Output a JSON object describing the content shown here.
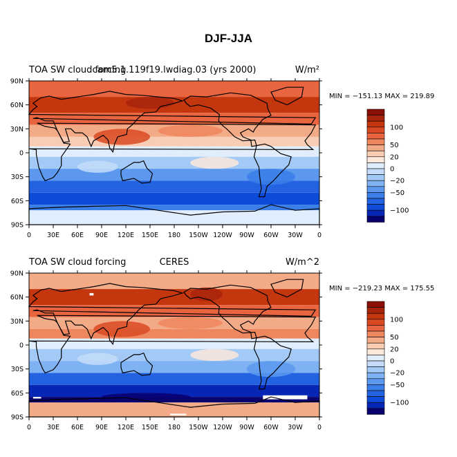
{
  "page": {
    "title": "DJF-JJA"
  },
  "colors": {
    "levels": [
      "#08006f",
      "#0626b6",
      "#0e4bd8",
      "#2363e2",
      "#3a7ee8",
      "#5b98ee",
      "#7fb2f3",
      "#a3c9f6",
      "#c4dcf9",
      "#dfedfc",
      "#fde8dc",
      "#f8cdb3",
      "#f3aa86",
      "#ee865e",
      "#e9653f",
      "#d94a22",
      "#c4360e",
      "#a8240a",
      "#8a0f04"
    ],
    "ocean_pos": "#e24e22",
    "ocean_neg": "#1f56d6",
    "land_line": "#000000",
    "no_data": "#ffffff"
  },
  "chart_data": [
    {
      "type": "heatmap",
      "title_left": "TOA SW cloud forcing",
      "title_center": "cam5.1.119f19.lwdiag.03 (yrs 2000)",
      "units": "W/m²",
      "stats": "MIN = −151.13 MAX = 219.89",
      "min": -151.13,
      "max": 219.89,
      "x_ticks": [
        "0",
        "30E",
        "60E",
        "90E",
        "120E",
        "150E",
        "180",
        "150W",
        "120W",
        "90W",
        "60W",
        "30W",
        "0"
      ],
      "y_ticks": [
        "90N",
        "60N",
        "30N",
        "0",
        "30S",
        "60S",
        "90S"
      ],
      "xlim": [
        0,
        360
      ],
      "ylim": [
        -90,
        90
      ],
      "colorbar_labels": [
        "100",
        "50",
        "20",
        "0",
        "−20",
        "−50",
        "−100"
      ],
      "projection": "cylindrical equidistant",
      "season": "DJF-JJA"
    },
    {
      "type": "heatmap",
      "title_left": "TOA SW cloud forcing",
      "title_center": "CERES",
      "units": "W/m^2",
      "stats": "MIN = −219.23 MAX = 175.55",
      "min": -219.23,
      "max": 175.55,
      "x_ticks": [
        "0",
        "30E",
        "60E",
        "90E",
        "120E",
        "150E",
        "180",
        "150W",
        "120W",
        "90W",
        "60W",
        "30W",
        "0"
      ],
      "y_ticks": [
        "90N",
        "60N",
        "30N",
        "0",
        "30S",
        "60S",
        "90S"
      ],
      "xlim": [
        0,
        360
      ],
      "ylim": [
        -90,
        90
      ],
      "colorbar_labels": [
        "100",
        "50",
        "20",
        "0",
        "−20",
        "−50",
        "−100"
      ],
      "projection": "cylindrical equidistant",
      "season": "DJF-JJA"
    }
  ]
}
